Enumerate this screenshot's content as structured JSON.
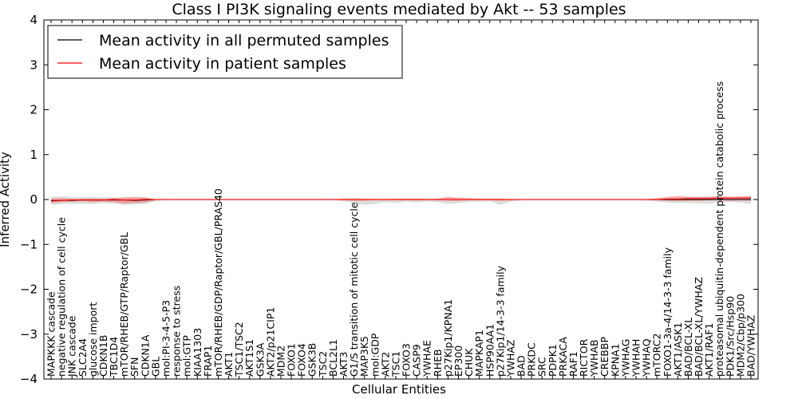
{
  "chart_data": {
    "type": "line",
    "title": "Class I PI3K signaling events mediated by Akt -- 53 samples",
    "xlabel": "Cellular Entities",
    "ylabel": "Inferred Activity",
    "ylim": [
      -4,
      4
    ],
    "yticks": [
      "−4",
      "−3",
      "−2",
      "−1",
      "0",
      "1",
      "2",
      "3",
      "4"
    ],
    "yticks_values": [
      -4,
      -3,
      -2,
      -1,
      0,
      1,
      2,
      3,
      4
    ],
    "legend_position": "upper-left",
    "categories": [
      "MAPKKK cascade",
      "negative regulation of cell cycle",
      "JNK cascade",
      "SLC2A4",
      "glucose import",
      "CDKN1B",
      "TBC1D4",
      "mTOR/RHEB/GTP/Raptor/GBL",
      "SFN",
      "CDKN1A",
      "GBL",
      "mol:PI-3-4-5-P3",
      "response to stress",
      "mol:GTP",
      "KIAA1303",
      "FRAP1",
      "mTOR/RHEB/GDP/Raptor/GBL/PRAS40",
      "AKT1",
      "TSC1/TSC2",
      "AKT1S1",
      "GSK3A",
      "AKT2/p21CIP1",
      "MDM2",
      "FOXO1",
      "FOXO4",
      "GSK3B",
      "TSC2",
      "BCL2L1",
      "AKT3",
      "G1/S transition of mitotic cell cycle",
      "MAP3K5",
      "mol:GDP",
      "AKT2",
      "TSC1",
      "FOXO3",
      "CASP9",
      "YWHAE",
      "RHEB",
      "p27Kip1/KPNA1",
      "EP300",
      "CHUK",
      "MAPKAP1",
      "HSP90AA1",
      "p27Kip1/14-3-3 family",
      "YWHAZ",
      "BAD",
      "PRKDC",
      "SRC",
      "PDPK1",
      "PRKACA",
      "RAF1",
      "RICTOR",
      "YWHAB",
      "CREBBP",
      "KPNA1",
      "YWHAG",
      "YWHAH",
      "YWHAQ",
      "mTORC2",
      "FOXO1-3a-4/14-3-3 family",
      "AKT1/ASK1",
      "BAD/BCL-XL",
      "BAD/BCL-XL/YWHAZ",
      "AKT1/RAF1",
      "proteasomal ubiquitin-dependent protein catabolic process",
      "PDK1/Src/Hsp90",
      "MDM2/Cbp/p300",
      "BAD/YWHAZ"
    ],
    "series": [
      {
        "name": "Mean activity in all permuted samples",
        "color": "#000000",
        "values": [
          -0.03,
          -0.02,
          -0.02,
          -0.01,
          -0.01,
          -0.01,
          -0.01,
          -0.01,
          -0.02,
          -0.01,
          0,
          0,
          0,
          0,
          0,
          0,
          0,
          0,
          0,
          0,
          0,
          0,
          0,
          0,
          0,
          0,
          0,
          0,
          0,
          0,
          0,
          0,
          0,
          0,
          0,
          0,
          0,
          0,
          0,
          0,
          0,
          0,
          0,
          0,
          0,
          0,
          0,
          0,
          0,
          0,
          0,
          0,
          0,
          0,
          0,
          0,
          0,
          0,
          0,
          0,
          0,
          0,
          0,
          0,
          0,
          0,
          0,
          0
        ],
        "band_upper": [
          0.06,
          0.07,
          0.06,
          0.05,
          0.05,
          0.05,
          0.05,
          0.04,
          0.04,
          0.04,
          0.01,
          0.01,
          0.01,
          0.01,
          0.01,
          0.01,
          0.01,
          0.01,
          0.01,
          0.01,
          0.01,
          0.01,
          0.01,
          0.01,
          0.01,
          0.01,
          0.01,
          0.01,
          0.02,
          0.03,
          0.02,
          0.02,
          0.02,
          0.02,
          0.02,
          0.02,
          0.02,
          0.02,
          0.03,
          0.03,
          0.02,
          0.02,
          0.02,
          0.02,
          0.01,
          0.01,
          0.01,
          0.01,
          0.01,
          0.01,
          0.01,
          0.01,
          0.01,
          0.01,
          0.01,
          0.01,
          0.01,
          0.01,
          0.02,
          0.03,
          0.04,
          0.05,
          0.06,
          0.07,
          0.08,
          0.06,
          0.06,
          0.07
        ],
        "band_lower": [
          -0.12,
          -0.1,
          -0.1,
          -0.09,
          -0.1,
          -0.08,
          -0.09,
          -0.12,
          -0.11,
          -0.1,
          -0.03,
          -0.02,
          -0.02,
          -0.02,
          -0.02,
          -0.02,
          -0.02,
          -0.02,
          -0.02,
          -0.02,
          -0.02,
          -0.02,
          -0.02,
          -0.02,
          -0.02,
          -0.02,
          -0.02,
          -0.02,
          -0.04,
          -0.08,
          -0.12,
          -0.1,
          -0.06,
          -0.08,
          -0.05,
          -0.07,
          -0.04,
          -0.06,
          -0.1,
          -0.08,
          -0.06,
          -0.05,
          -0.04,
          -0.12,
          -0.05,
          -0.03,
          -0.02,
          -0.02,
          -0.02,
          -0.02,
          -0.02,
          -0.02,
          -0.02,
          -0.02,
          -0.02,
          -0.02,
          -0.02,
          -0.03,
          -0.05,
          -0.07,
          -0.08,
          -0.08,
          -0.09,
          -0.09,
          -0.07,
          -0.06,
          -0.07,
          -0.1
        ]
      },
      {
        "name": "Mean activity in patient samples",
        "color": "#ff0000",
        "values": [
          -0.02,
          -0.02,
          -0.01,
          -0.01,
          -0.01,
          -0.01,
          0,
          -0.01,
          -0.01,
          0,
          0,
          0,
          0,
          0,
          0,
          0,
          0,
          0,
          0,
          0,
          0,
          0,
          0,
          0,
          0,
          0,
          0,
          0,
          0,
          0,
          0,
          0,
          0,
          0,
          0,
          0,
          0,
          0,
          0,
          0,
          0,
          0,
          0,
          0,
          0,
          0,
          0,
          0,
          0,
          0,
          0,
          0,
          0,
          0,
          0,
          0,
          0,
          0,
          0,
          0.01,
          0.01,
          0.02,
          0.02,
          0.02,
          0.03,
          0.03,
          0.03,
          0.03
        ],
        "band_upper": [
          0.02,
          0.03,
          0.02,
          0.02,
          0.03,
          0.02,
          0.03,
          0.05,
          0.06,
          0.05,
          0.01,
          0.01,
          0.01,
          0.01,
          0.01,
          0.01,
          0.01,
          0.01,
          0.01,
          0.01,
          0.01,
          0.01,
          0.01,
          0.01,
          0.01,
          0.01,
          0.01,
          0.01,
          0.02,
          0.02,
          0.02,
          0.01,
          0.01,
          0.02,
          0.02,
          0.02,
          0.01,
          0.02,
          0.06,
          0.04,
          0.03,
          0.02,
          0.02,
          0.02,
          0.01,
          0.01,
          0.01,
          0.01,
          0.01,
          0.01,
          0.01,
          0.01,
          0.01,
          0.01,
          0.01,
          0.01,
          0.01,
          0.01,
          0.03,
          0.06,
          0.08,
          0.07,
          0.06,
          0.06,
          0.07,
          0.06,
          0.07,
          0.08
        ],
        "band_lower": [
          -0.08,
          -0.06,
          -0.05,
          -0.04,
          -0.06,
          -0.05,
          -0.06,
          -0.09,
          -0.08,
          -0.07,
          -0.02,
          -0.01,
          -0.01,
          -0.01,
          -0.01,
          -0.01,
          -0.01,
          -0.01,
          -0.01,
          -0.01,
          -0.01,
          -0.01,
          -0.01,
          -0.01,
          -0.01,
          -0.01,
          -0.01,
          -0.01,
          -0.02,
          -0.03,
          -0.03,
          -0.02,
          -0.02,
          -0.02,
          -0.02,
          -0.02,
          -0.02,
          -0.02,
          -0.03,
          -0.03,
          -0.02,
          -0.02,
          -0.02,
          -0.03,
          -0.02,
          -0.01,
          -0.01,
          -0.01,
          -0.01,
          -0.01,
          -0.01,
          -0.01,
          -0.01,
          -0.01,
          -0.01,
          -0.01,
          -0.01,
          -0.01,
          -0.02,
          -0.03,
          -0.04,
          -0.03,
          -0.03,
          -0.02,
          -0.02,
          -0.03,
          -0.02,
          -0.03
        ]
      }
    ]
  }
}
